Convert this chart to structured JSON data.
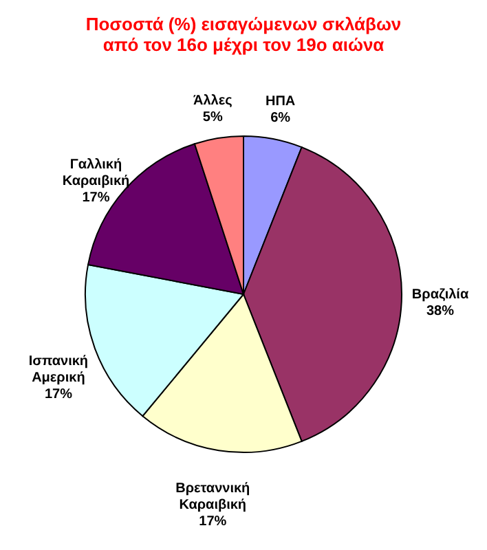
{
  "chart_data": {
    "type": "pie",
    "title": "Ποσοστά (%) εισαγώμενων σκλάβων\nαπό τον 16ο μέχρι τον 19ο αιώνα",
    "categories": [
      "ΗΠΑ",
      "Βραζιλία",
      "Βρεταννική Καραιβική",
      "Ισπανική Αμερική",
      "Γαλλική Καραιβική",
      "Άλλες"
    ],
    "values": [
      6,
      38,
      17,
      17,
      17,
      5
    ],
    "value_labels": [
      "6%",
      "38%",
      "17%",
      "17%",
      "17%",
      "5%"
    ],
    "colors": [
      "#9999ff",
      "#993366",
      "#ffffcc",
      "#ccffff",
      "#660066",
      "#ff8080"
    ]
  }
}
